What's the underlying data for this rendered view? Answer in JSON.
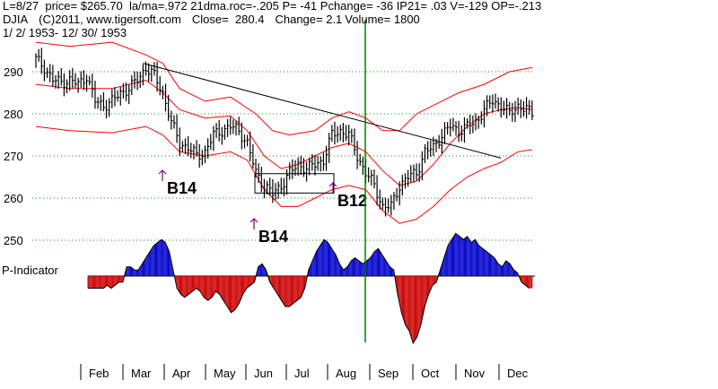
{
  "header": {
    "line1": "L=8/27  price= $265.70  la/ma=.972 21dma.roc=-.205 P= -41 Pchange= -36 IP21= .03 V=-129 OP=-.213",
    "ticker": "DJIA",
    "copyright": "(C)2011, www.tigersoft.com",
    "close": "Close=  280.4",
    "change": "Change= 2.1",
    "volume": "Volume= 1800",
    "date_range": "1/ 2/ 1953- 12/ 30/ 1953"
  },
  "colors": {
    "price": "#000000",
    "bands": "#ff0000",
    "grid": "#009900",
    "signal_arrow": "#800080",
    "positive": "#0000cc",
    "negative": "#cc0000",
    "vline": "#008000"
  },
  "chart_data": {
    "type": "line",
    "title": "DJIA 1953",
    "y_ticks": [
      290,
      280,
      270,
      260,
      250
    ],
    "ylim": [
      246,
      296
    ],
    "month_labels": [
      "Feb",
      "Mar",
      "Apr",
      "May",
      "Jun",
      "Jul",
      "Aug",
      "Sep",
      "Oct",
      "Nov",
      "Dec"
    ],
    "indicator_label": "P-Indicator",
    "signals": [
      {
        "label": "B14",
        "day": 23,
        "price": 265
      },
      {
        "label": "B14",
        "day": 62,
        "price": 256
      },
      {
        "label": "B12",
        "day": 94,
        "price": 261
      }
    ],
    "series": [
      {
        "name": "DJIA close",
        "points": [
          [
            0,
            293
          ],
          [
            3,
            291
          ],
          [
            6,
            288
          ],
          [
            9,
            287.5
          ],
          [
            12,
            288
          ],
          [
            15,
            287
          ],
          [
            18,
            289
          ],
          [
            21,
            283
          ],
          [
            24,
            282
          ],
          [
            27,
            283
          ],
          [
            30,
            285
          ],
          [
            33,
            286
          ],
          [
            36,
            288
          ],
          [
            39,
            291
          ],
          [
            42,
            289
          ],
          [
            45,
            285
          ],
          [
            48,
            278
          ],
          [
            51,
            273
          ],
          [
            54,
            272
          ],
          [
            57,
            270
          ],
          [
            60,
            271
          ],
          [
            63,
            275
          ],
          [
            66,
            276
          ],
          [
            69,
            277
          ],
          [
            72,
            276
          ],
          [
            75,
            273
          ],
          [
            78,
            266
          ],
          [
            81,
            263
          ],
          [
            84,
            261
          ],
          [
            87,
            263
          ],
          [
            90,
            266
          ],
          [
            93,
            268
          ],
          [
            96,
            267
          ],
          [
            99,
            268
          ],
          [
            102,
            269
          ],
          [
            105,
            275
          ],
          [
            108,
            276
          ],
          [
            111,
            275
          ],
          [
            114,
            270
          ],
          [
            117,
            266
          ],
          [
            120,
            263
          ],
          [
            123,
            258
          ],
          [
            126,
            258
          ],
          [
            129,
            263
          ],
          [
            132,
            265
          ],
          [
            135,
            266
          ],
          [
            138,
            271
          ],
          [
            141,
            272
          ],
          [
            144,
            275
          ],
          [
            147,
            277
          ],
          [
            150,
            276
          ],
          [
            153,
            277
          ],
          [
            156,
            278
          ],
          [
            159,
            281
          ],
          [
            162,
            283
          ],
          [
            165,
            282
          ],
          [
            168,
            280
          ],
          [
            171,
            282
          ],
          [
            174,
            281
          ],
          [
            176,
            280
          ]
        ]
      },
      {
        "name": "Upper band",
        "points": [
          [
            0,
            297
          ],
          [
            12,
            296
          ],
          [
            27,
            297
          ],
          [
            39,
            294
          ],
          [
            45,
            292
          ],
          [
            51,
            286
          ],
          [
            60,
            283
          ],
          [
            69,
            284
          ],
          [
            78,
            280
          ],
          [
            84,
            276
          ],
          [
            90,
            275
          ],
          [
            99,
            276
          ],
          [
            105,
            279
          ],
          [
            111,
            280.5
          ],
          [
            117,
            279
          ],
          [
            123,
            276
          ],
          [
            129,
            276
          ],
          [
            135,
            280
          ],
          [
            141,
            282
          ],
          [
            150,
            285
          ],
          [
            159,
            287
          ],
          [
            168,
            290
          ],
          [
            176,
            291
          ]
        ]
      },
      {
        "name": "Middle line",
        "points": [
          [
            0,
            287
          ],
          [
            12,
            286
          ],
          [
            27,
            286
          ],
          [
            39,
            288
          ],
          [
            45,
            285
          ],
          [
            51,
            281
          ],
          [
            60,
            279
          ],
          [
            69,
            279.5
          ],
          [
            75,
            276
          ],
          [
            81,
            270
          ],
          [
            87,
            267
          ],
          [
            93,
            268
          ],
          [
            99,
            270
          ],
          [
            105,
            272
          ],
          [
            111,
            273
          ],
          [
            117,
            271
          ],
          [
            123,
            266.5
          ],
          [
            129,
            263
          ],
          [
            135,
            264
          ],
          [
            141,
            268
          ],
          [
            147,
            273
          ],
          [
            153,
            277
          ],
          [
            159,
            280
          ],
          [
            165,
            281
          ],
          [
            171,
            281.5
          ],
          [
            176,
            281
          ]
        ]
      },
      {
        "name": "Lower band",
        "points": [
          [
            0,
            277
          ],
          [
            12,
            276
          ],
          [
            27,
            275.5
          ],
          [
            39,
            277
          ],
          [
            45,
            275
          ],
          [
            51,
            271
          ],
          [
            60,
            270
          ],
          [
            69,
            271
          ],
          [
            75,
            269
          ],
          [
            81,
            262
          ],
          [
            87,
            258
          ],
          [
            93,
            258
          ],
          [
            99,
            260
          ],
          [
            105,
            262
          ],
          [
            111,
            263
          ],
          [
            117,
            262
          ],
          [
            123,
            257
          ],
          [
            129,
            254
          ],
          [
            135,
            255
          ],
          [
            141,
            258
          ],
          [
            147,
            262
          ],
          [
            153,
            265
          ],
          [
            159,
            267
          ],
          [
            165,
            268.5
          ],
          [
            171,
            271
          ],
          [
            176,
            271.5
          ]
        ]
      },
      {
        "name": "Downtrend line",
        "points": [
          [
            38,
            292
          ],
          [
            165,
            269.5
          ]
        ]
      }
    ],
    "p_indicator": [
      -4,
      -4,
      -4,
      -4,
      -4,
      -3,
      -4,
      -3,
      -2,
      -2,
      3,
      3,
      2,
      2,
      4,
      6,
      8,
      10,
      11,
      12,
      11,
      8,
      2,
      -4,
      -6,
      -7,
      -6,
      -5,
      -4,
      -5,
      -7,
      -8,
      -7,
      -5,
      -6,
      -8,
      -10,
      -12,
      -11,
      -9,
      -6,
      -4,
      -3,
      -2,
      3,
      4,
      2,
      -2,
      -4,
      -6,
      -8,
      -10,
      -10,
      -9,
      -8,
      -7,
      -4,
      2,
      5,
      8,
      10,
      12,
      11,
      9,
      7,
      4,
      2,
      3,
      5,
      6,
      5,
      4,
      5,
      6,
      8,
      9,
      7,
      5,
      3,
      2,
      -6,
      -12,
      -16,
      -18,
      -22,
      -20,
      -16,
      -10,
      -6,
      -3,
      -2,
      2,
      6,
      10,
      12,
      14,
      13,
      12,
      13,
      11,
      12,
      10,
      9,
      8,
      7,
      6,
      4,
      3,
      5,
      4,
      2,
      1,
      -2,
      -3,
      -4
    ]
  }
}
